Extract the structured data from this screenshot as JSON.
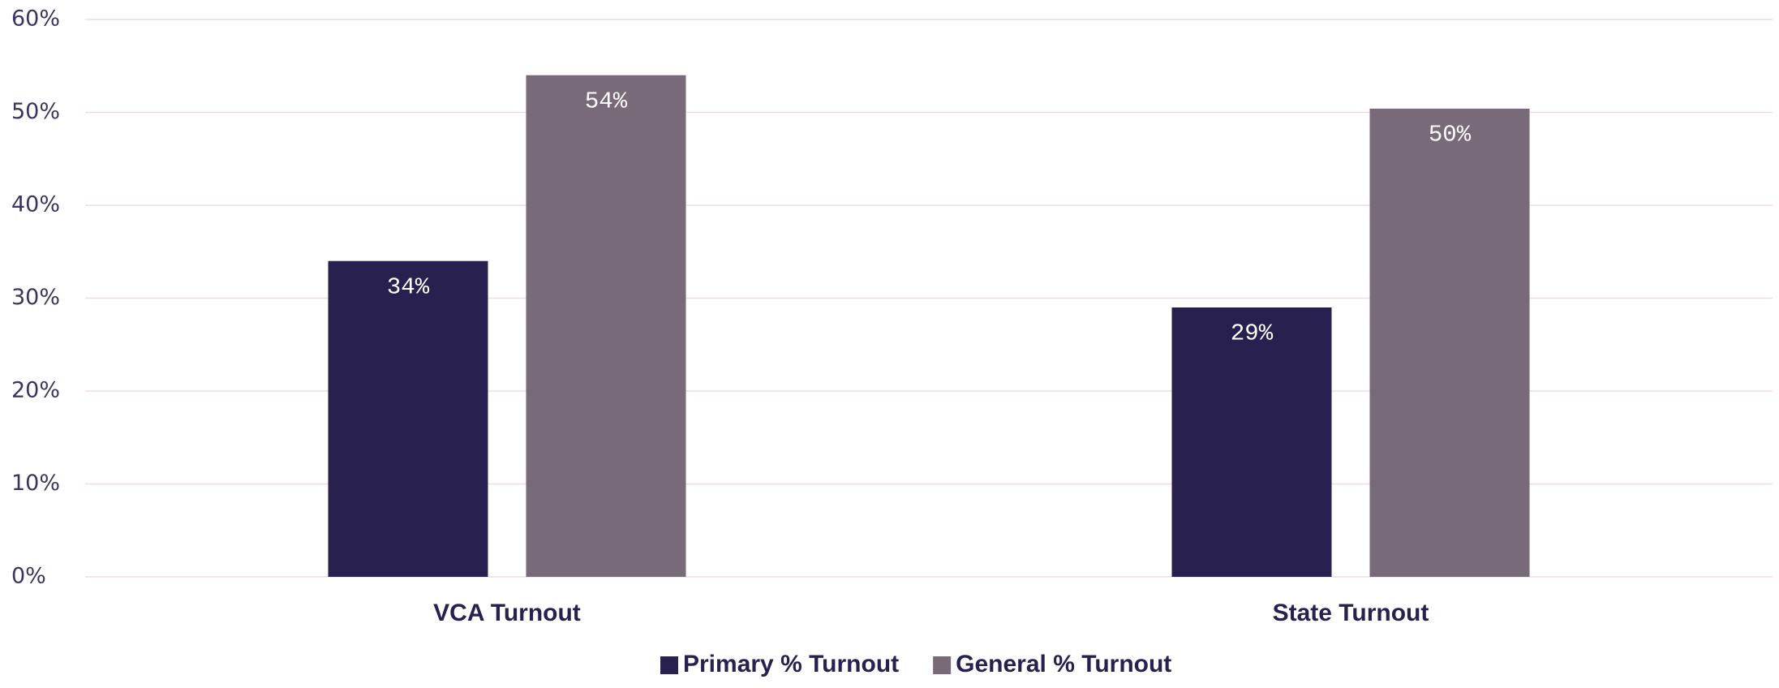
{
  "chart_data": {
    "type": "bar",
    "categories": [
      "VCA Turnout",
      "State Turnout"
    ],
    "series": [
      {
        "name": "Primary % Turnout",
        "color": "#28214f",
        "values": [
          34,
          29
        ],
        "value_labels": [
          "34%",
          "29%"
        ]
      },
      {
        "name": "General % Turnout",
        "color": "#796a7a",
        "values": [
          54,
          50.4
        ],
        "value_labels": [
          "54%",
          "50%"
        ]
      }
    ],
    "ylim": [
      0,
      60
    ],
    "yticks": [
      {
        "value": 0,
        "label": "0%"
      },
      {
        "value": 10,
        "label": "10%"
      },
      {
        "value": 20,
        "label": "20%"
      },
      {
        "value": 30,
        "label": "30%"
      },
      {
        "value": 40,
        "label": "40%"
      },
      {
        "value": 50,
        "label": "50%"
      },
      {
        "value": 60,
        "label": "60%"
      }
    ],
    "grid": true,
    "legend": "bottom"
  }
}
